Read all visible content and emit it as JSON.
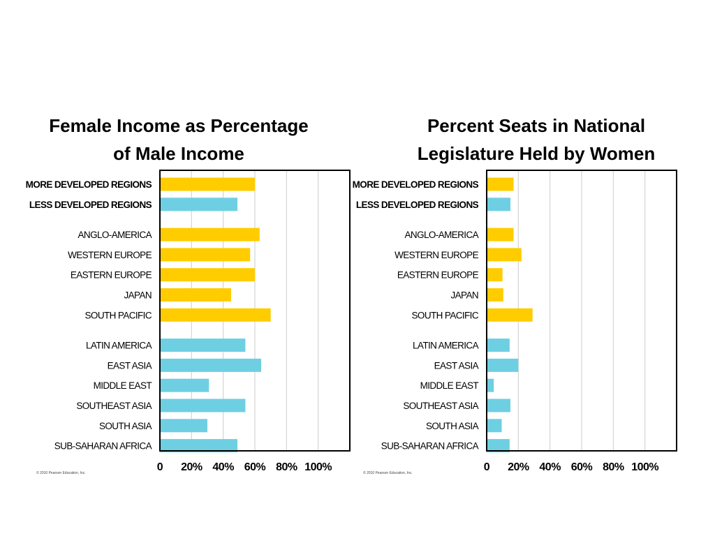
{
  "colors": {
    "yellow": "#FFCC00",
    "cyan": "#6ECFE2",
    "grid": "#d4d4d4",
    "frame": "#000000"
  },
  "credit": "© 2010 Pearson Education, Inc.",
  "chart_data": [
    {
      "type": "bar",
      "orientation": "horizontal",
      "title_lines": [
        "Female Income as Percentage",
        "of Male Income"
      ],
      "xlim": [
        0,
        120
      ],
      "ticks": [
        0,
        20,
        40,
        60,
        80,
        100
      ],
      "tick_labels": [
        "0",
        "20%",
        "40%",
        "60%",
        "80%",
        "100%"
      ],
      "grid": true,
      "groups": [
        {
          "bars": [
            {
              "label": "MORE DEVELOPED REGIONS",
              "value": 60,
              "color": "yellow",
              "bold": true
            },
            {
              "label": "LESS DEVELOPED REGIONS",
              "value": 49,
              "color": "cyan",
              "bold": true
            }
          ]
        },
        {
          "bars": [
            {
              "label": "ANGLO-AMERICA",
              "value": 63,
              "color": "yellow"
            },
            {
              "label": "WESTERN EUROPE",
              "value": 57,
              "color": "yellow"
            },
            {
              "label": "EASTERN EUROPE",
              "value": 60,
              "color": "yellow"
            },
            {
              "label": "JAPAN",
              "value": 45,
              "color": "yellow"
            },
            {
              "label": "SOUTH PACIFIC",
              "value": 70,
              "color": "yellow"
            }
          ]
        },
        {
          "bars": [
            {
              "label": "LATIN AMERICA",
              "value": 54,
              "color": "cyan"
            },
            {
              "label": "EAST ASIA",
              "value": 64,
              "color": "cyan"
            },
            {
              "label": "MIDDLE EAST",
              "value": 31,
              "color": "cyan"
            },
            {
              "label": "SOUTHEAST ASIA",
              "value": 54,
              "color": "cyan"
            },
            {
              "label": "SOUTH ASIA",
              "value": 30,
              "color": "cyan"
            },
            {
              "label": "SUB-SAHARAN AFRICA",
              "value": 49,
              "color": "cyan"
            }
          ]
        }
      ]
    },
    {
      "type": "bar",
      "orientation": "horizontal",
      "title_lines": [
        "Percent Seats in National",
        "Legislature Held by Women"
      ],
      "xlim": [
        0,
        120
      ],
      "ticks": [
        0,
        20,
        40,
        60,
        80,
        100
      ],
      "tick_labels": [
        "0",
        "20%",
        "40%",
        "60%",
        "80%",
        "100%"
      ],
      "grid": true,
      "groups": [
        {
          "bars": [
            {
              "label": "MORE DEVELOPED REGIONS",
              "value": 17,
              "color": "yellow",
              "bold": true
            },
            {
              "label": "LESS DEVELOPED REGIONS",
              "value": 15,
              "color": "cyan",
              "bold": true
            }
          ]
        },
        {
          "bars": [
            {
              "label": "ANGLO-AMERICA",
              "value": 17,
              "color": "yellow"
            },
            {
              "label": "WESTERN EUROPE",
              "value": 22,
              "color": "yellow"
            },
            {
              "label": "EASTERN EUROPE",
              "value": 10,
              "color": "yellow"
            },
            {
              "label": "JAPAN",
              "value": 10.5,
              "color": "yellow"
            },
            {
              "label": "SOUTH PACIFIC",
              "value": 29,
              "color": "yellow"
            }
          ]
        },
        {
          "bars": [
            {
              "label": "LATIN AMERICA",
              "value": 14.5,
              "color": "cyan"
            },
            {
              "label": "EAST ASIA",
              "value": 20,
              "color": "cyan"
            },
            {
              "label": "MIDDLE EAST",
              "value": 4.5,
              "color": "cyan"
            },
            {
              "label": "SOUTHEAST ASIA",
              "value": 15,
              "color": "cyan"
            },
            {
              "label": "SOUTH ASIA",
              "value": 9.5,
              "color": "cyan"
            },
            {
              "label": "SUB-SAHARAN AFRICA",
              "value": 14.5,
              "color": "cyan"
            }
          ]
        }
      ]
    }
  ]
}
